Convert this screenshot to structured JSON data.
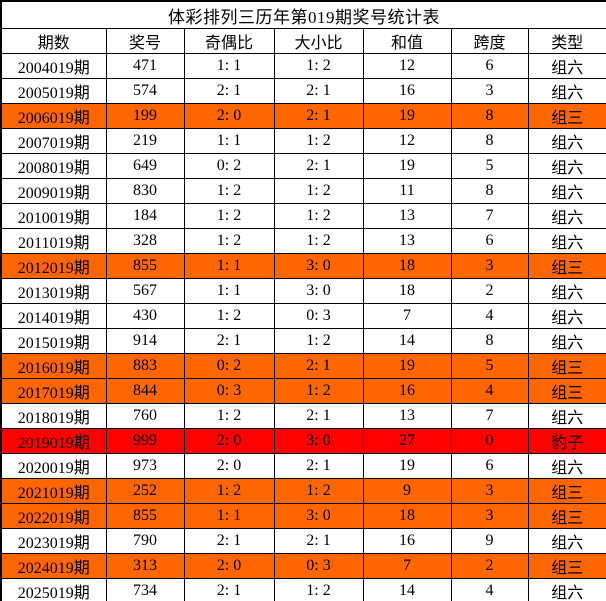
{
  "title": "体彩排列三历年第019期奖号统计表",
  "colors": {
    "row_orange": "#FF6600",
    "row_red": "#FF0000",
    "border": "#000000",
    "text": "#000000",
    "background": "#FFFFFF"
  },
  "chart_data": {
    "type": "table",
    "title": "体彩排列三历年第019期奖号统计表",
    "columns": [
      "期数",
      "奖号",
      "奇偶比",
      "大小比",
      "和值",
      "跨度",
      "类型"
    ],
    "rows": [
      [
        "2004019期",
        "471",
        "1: 1",
        "1: 2",
        "12",
        "6",
        "组六"
      ],
      [
        "2005019期",
        "574",
        "2: 1",
        "2: 1",
        "16",
        "3",
        "组六"
      ],
      [
        "2006019期",
        "199",
        "2: 0",
        "2: 1",
        "19",
        "8",
        "组三"
      ],
      [
        "2007019期",
        "219",
        "1: 1",
        "1: 2",
        "12",
        "8",
        "组六"
      ],
      [
        "2008019期",
        "649",
        "0: 2",
        "2: 1",
        "19",
        "5",
        "组六"
      ],
      [
        "2009019期",
        "830",
        "1: 2",
        "1: 2",
        "11",
        "8",
        "组六"
      ],
      [
        "2010019期",
        "184",
        "1: 2",
        "1: 2",
        "13",
        "7",
        "组六"
      ],
      [
        "2011019期",
        "328",
        "1: 2",
        "1: 2",
        "13",
        "6",
        "组六"
      ],
      [
        "2012019期",
        "855",
        "1: 1",
        "3: 0",
        "18",
        "3",
        "组三"
      ],
      [
        "2013019期",
        "567",
        "1: 1",
        "3: 0",
        "18",
        "2",
        "组六"
      ],
      [
        "2014019期",
        "430",
        "1: 2",
        "0: 3",
        "7",
        "4",
        "组六"
      ],
      [
        "2015019期",
        "914",
        "2: 1",
        "1: 2",
        "14",
        "8",
        "组六"
      ],
      [
        "2016019期",
        "883",
        "0: 2",
        "2: 1",
        "19",
        "5",
        "组三"
      ],
      [
        "2017019期",
        "844",
        "0: 3",
        "1: 2",
        "16",
        "4",
        "组三"
      ],
      [
        "2018019期",
        "760",
        "1: 2",
        "2: 1",
        "13",
        "7",
        "组六"
      ],
      [
        "2019019期",
        "999",
        "2: 0",
        "3: 0",
        "27",
        "0",
        "豹子"
      ],
      [
        "2020019期",
        "973",
        "2: 0",
        "2: 1",
        "19",
        "6",
        "组六"
      ],
      [
        "2021019期",
        "252",
        "1: 2",
        "1: 2",
        "9",
        "3",
        "组三"
      ],
      [
        "2022019期",
        "855",
        "1: 1",
        "3: 0",
        "18",
        "3",
        "组三"
      ],
      [
        "2023019期",
        "790",
        "2: 1",
        "2: 1",
        "16",
        "9",
        "组六"
      ],
      [
        "2024019期",
        "313",
        "2: 0",
        "0: 3",
        "7",
        "2",
        "组三"
      ],
      [
        "2025019期",
        "734",
        "2: 1",
        "1: 2",
        "14",
        "4",
        "组六"
      ]
    ],
    "row_highlights": [
      "none",
      "none",
      "orange",
      "none",
      "none",
      "none",
      "none",
      "none",
      "orange",
      "none",
      "none",
      "none",
      "orange",
      "orange",
      "none",
      "red",
      "none",
      "orange",
      "orange",
      "none",
      "orange",
      "none"
    ],
    "legend_note": ""
  }
}
